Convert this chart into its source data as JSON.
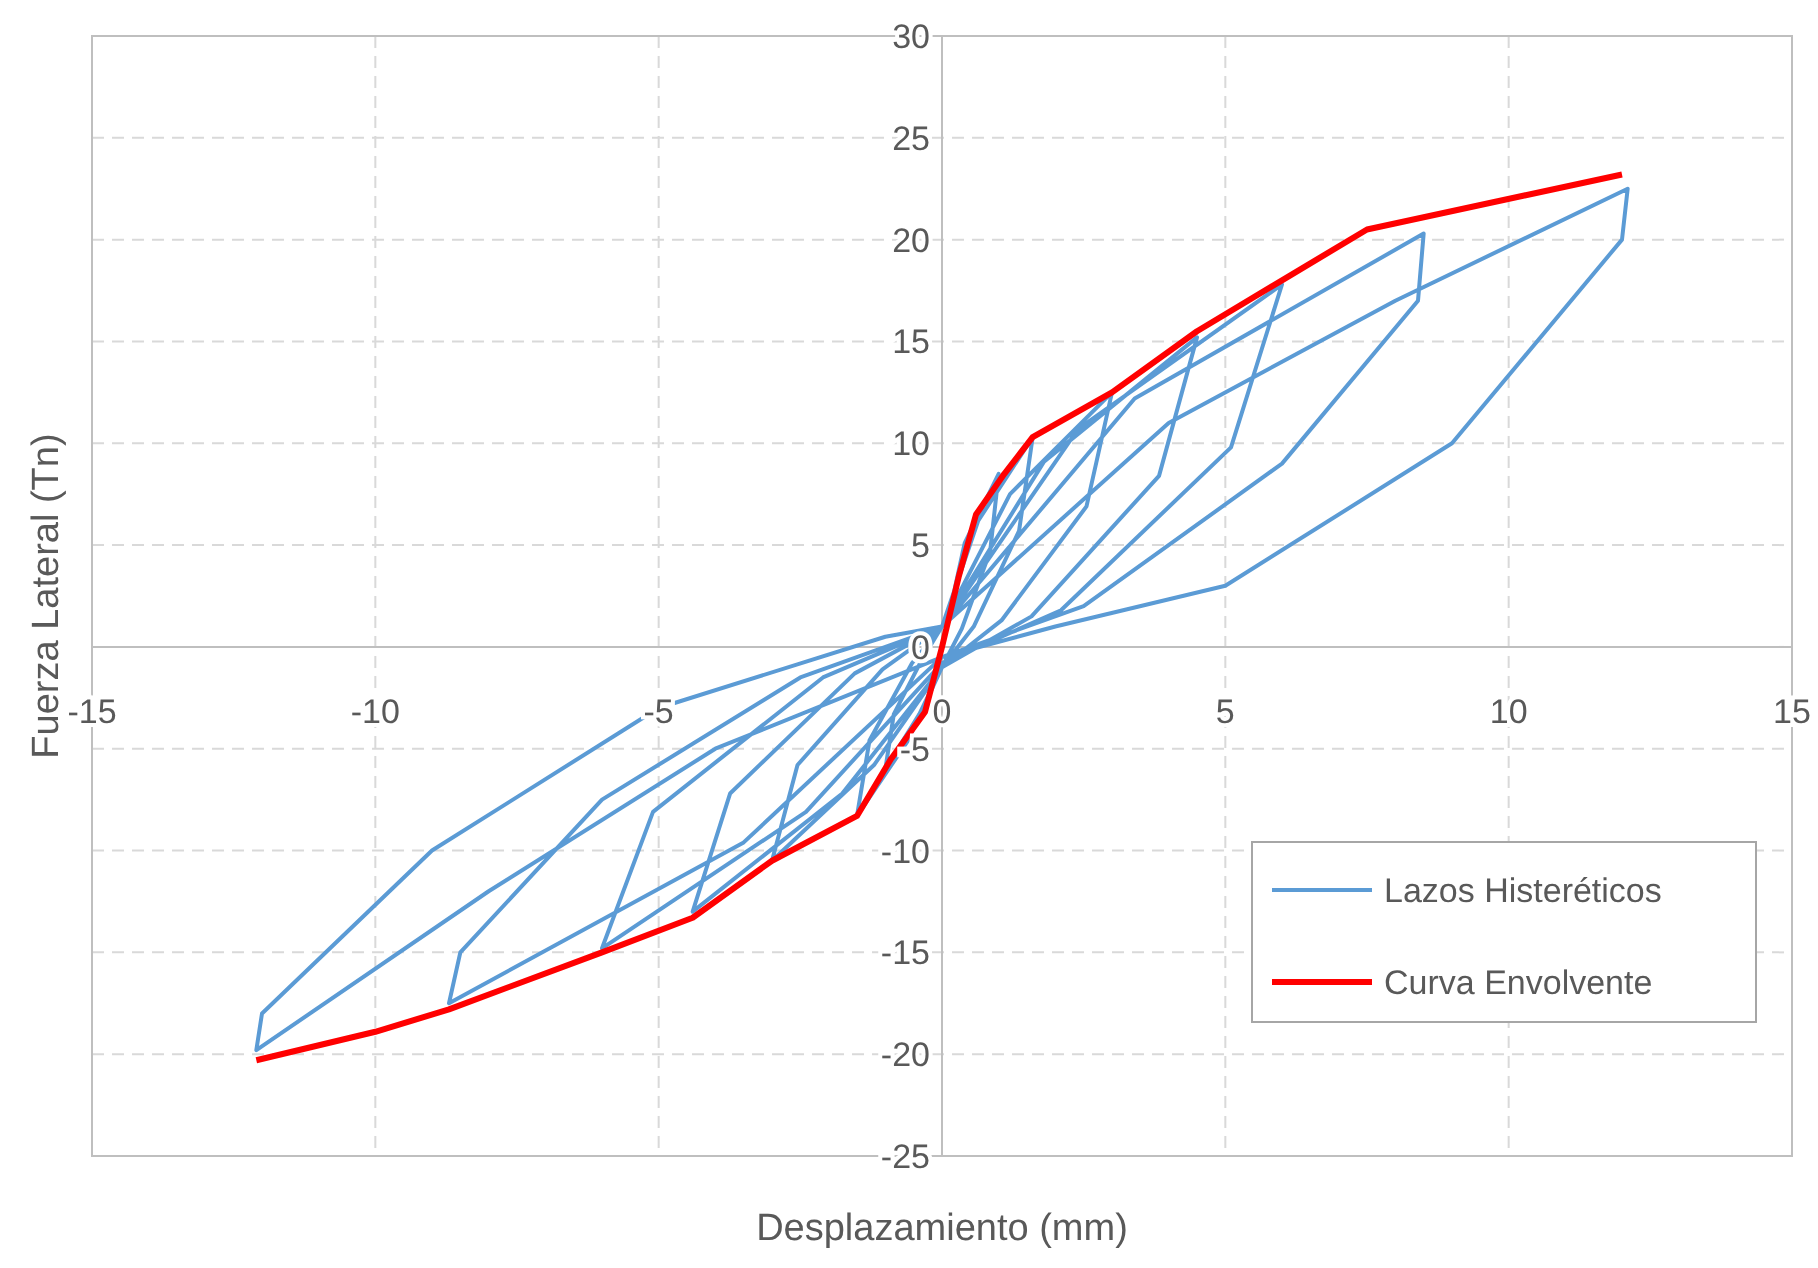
{
  "chart_data": {
    "type": "line",
    "xlabel": "Desplazamiento (mm)",
    "ylabel": "Fuerza Lateral (Tn)",
    "xlim": [
      -15,
      15
    ],
    "ylim": [
      -25,
      30
    ],
    "xticks": [
      -15,
      -10,
      -5,
      0,
      5,
      10,
      15
    ],
    "yticks": [
      -25,
      -20,
      -15,
      -10,
      -5,
      0,
      5,
      10,
      15,
      20,
      25,
      30
    ],
    "grid": true,
    "legend": "bottom right",
    "marker": "none",
    "line_style": "solid",
    "series": [
      {
        "name": "Lazos Histeréticos",
        "color": "#5b9bd5",
        "x": [
          0,
          0.4,
          1,
          0.85,
          0.35,
          0,
          -0.4,
          -1,
          -0.85,
          -0.35,
          0,
          0.64,
          1.6,
          1.36,
          0.56,
          0,
          -0.6,
          -1.5,
          -1.28,
          -0.53,
          0,
          1.2,
          3,
          2.55,
          1.05,
          0,
          -1.2,
          -3,
          -2.55,
          -1.05,
          0,
          1.8,
          4.5,
          3.83,
          1.58,
          0,
          -1.76,
          -4.4,
          -3.74,
          -1.54,
          0,
          2.4,
          6,
          5.1,
          2.1,
          0,
          -2.4,
          -6,
          -5.1,
          -2.1,
          0,
          3.4,
          8.5,
          8.4,
          6,
          2.5,
          0,
          -3.5,
          -8.7,
          -8.5,
          -6,
          -2.5,
          0,
          4,
          8,
          12.1,
          12,
          9,
          5,
          2,
          0,
          -4,
          -8,
          -12.1,
          -12,
          -9,
          -5,
          -1,
          0
        ],
        "values": [
          0,
          5.1,
          8.5,
          4.7,
          0.9,
          -1,
          -3.3,
          -6,
          -3.3,
          -0.6,
          1,
          6.2,
          10.3,
          5.7,
          1,
          -1,
          -4.6,
          -8.3,
          -4.6,
          -0.8,
          1,
          7.5,
          12.5,
          6.9,
          1.3,
          -1,
          -5.8,
          -10.5,
          -5.8,
          -1.1,
          1,
          9.1,
          15.2,
          8.4,
          1.5,
          -1,
          -7.2,
          -13,
          -7.2,
          -1.3,
          1,
          10.7,
          17.8,
          9.8,
          1.8,
          -0.8,
          -8.1,
          -14.8,
          -8.1,
          -1.5,
          1,
          12.2,
          20.3,
          17,
          9,
          2,
          -0.5,
          -9.6,
          -17.5,
          -15,
          -7.5,
          -1.5,
          1,
          11,
          17,
          22.5,
          20,
          10,
          3,
          1,
          -0.5,
          -5,
          -12,
          -19.8,
          -18,
          -10,
          -3,
          0.5,
          1
        ]
      },
      {
        "name": "Curva Envolvente",
        "color": "#ff0000",
        "x": [
          -12.1,
          -10,
          -8.7,
          -6,
          -4.4,
          -3,
          -1.5,
          -0.9,
          -0.3,
          0,
          0.3,
          0.6,
          1.1,
          1.6,
          3,
          4.5,
          6,
          7.5,
          12
        ],
        "values": [
          -20.3,
          -18.9,
          -17.8,
          -15,
          -13.3,
          -10.5,
          -8.3,
          -5.5,
          -3.2,
          0,
          3.5,
          6.5,
          8.5,
          10.3,
          12.5,
          15.5,
          18,
          20.5,
          23.2
        ]
      }
    ]
  }
}
